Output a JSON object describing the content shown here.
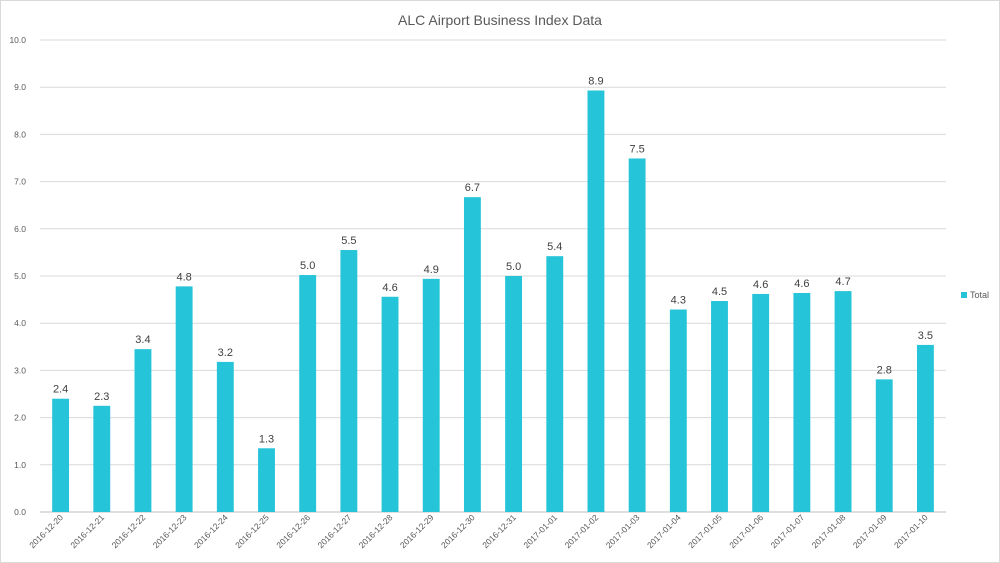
{
  "chart_data": {
    "type": "bar",
    "title": "ALC Airport Business Index Data",
    "xlabel": "",
    "ylabel": "",
    "ylim": [
      0,
      10
    ],
    "yticks": [
      "0.0",
      "1.0",
      "2.0",
      "3.0",
      "4.0",
      "5.0",
      "6.0",
      "7.0",
      "8.0",
      "9.0",
      "10.0"
    ],
    "grid": true,
    "legend_position": "right",
    "categories": [
      "2016-12-20",
      "2016-12-21",
      "2016-12-22",
      "2016-12-23",
      "2016-12-24",
      "2016-12-25",
      "2016-12-26",
      "2016-12-27",
      "2016-12-28",
      "2016-12-29",
      "2016-12-30",
      "2016-12-31",
      "2017-01-01",
      "2017-01-02",
      "2017-01-03",
      "2017-01-04",
      "2017-01-05",
      "2017-01-06",
      "2017-01-07",
      "2017-01-08",
      "2017-01-09",
      "2017-01-10"
    ],
    "series": [
      {
        "name": "Total",
        "color": "#26c4d8",
        "values": [
          2.4,
          2.25,
          3.45,
          4.78,
          3.18,
          1.35,
          5.02,
          5.55,
          4.56,
          4.94,
          6.67,
          5.0,
          5.42,
          8.93,
          7.49,
          4.29,
          4.47,
          4.62,
          4.64,
          4.68,
          2.81,
          3.54
        ],
        "data_labels": [
          "2.4",
          "2.3",
          "3.4",
          "4.8",
          "3.2",
          "1.3",
          "5.0",
          "5.5",
          "4.6",
          "4.9",
          "6.7",
          "5.0",
          "5.4",
          "8.9",
          "7.5",
          "4.3",
          "4.5",
          "4.6",
          "4.6",
          "4.7",
          "2.8",
          "3.5"
        ]
      }
    ]
  }
}
